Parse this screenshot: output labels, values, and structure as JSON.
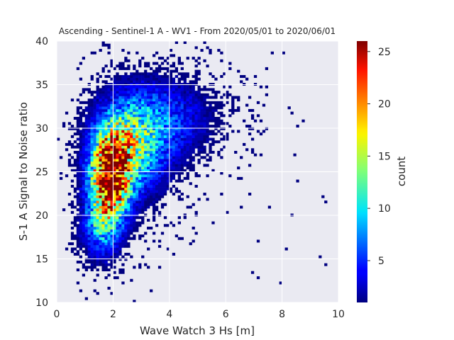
{
  "chart_data": {
    "type": "heatmap",
    "title": "Ascending - Sentinel-1 A - WV1 - From 2020/05/01 to 2020/06/01",
    "xlabel": "Wave Watch 3 Hs [m]",
    "ylabel": "S-1 A Signal to Noise ratio",
    "xlim": [
      0,
      10
    ],
    "ylim": [
      10,
      40
    ],
    "x_ticks": [
      0,
      2,
      4,
      6,
      8,
      10
    ],
    "y_ticks": [
      10,
      15,
      20,
      25,
      30,
      35,
      40
    ],
    "grid": true,
    "colorbar": {
      "label": "count",
      "range": [
        1,
        26
      ],
      "ticks": [
        5,
        10,
        15,
        20,
        25
      ],
      "colormap": "jet"
    },
    "bins": {
      "x_count": 100,
      "y_count": 100
    },
    "density_model": {
      "description": "2D histogram of WW3 Hs vs SNR; highest counts near Hs 1.9 m, SNR 24-26",
      "components": [
        {
          "x": 1.9,
          "y": 24.5,
          "sx": 0.45,
          "sy": 3.2,
          "peak": 26
        },
        {
          "x": 2.6,
          "y": 28.0,
          "sx": 0.8,
          "sy": 3.5,
          "peak": 12
        },
        {
          "x": 3.8,
          "y": 31.0,
          "sx": 1.1,
          "sy": 3.0,
          "peak": 5
        },
        {
          "x": 1.6,
          "y": 19.0,
          "sx": 0.45,
          "sy": 2.5,
          "peak": 8
        }
      ]
    }
  }
}
